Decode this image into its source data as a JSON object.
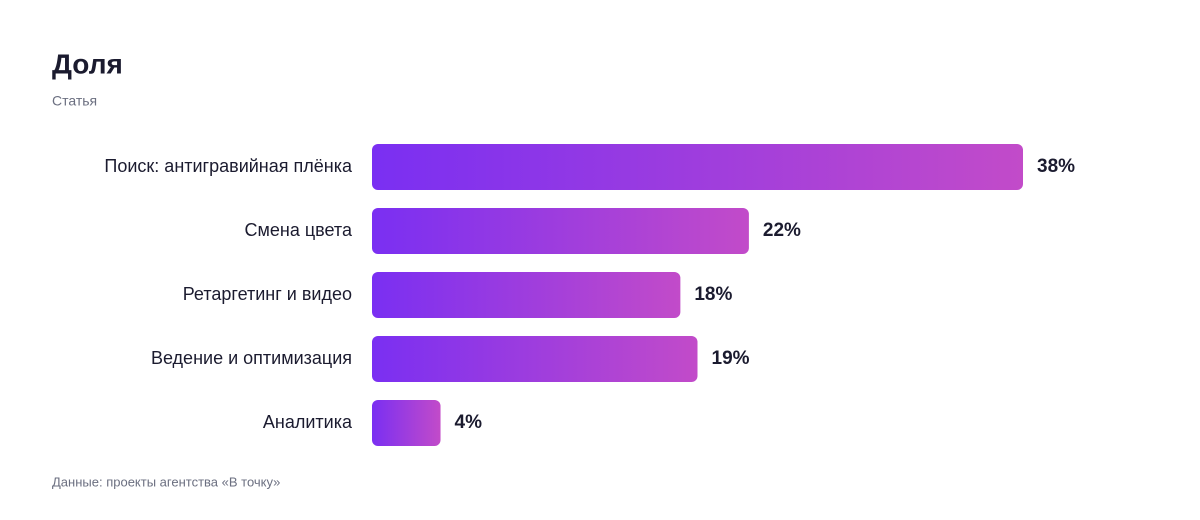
{
  "chart_data": {
    "type": "barh",
    "title": "Доля",
    "subtitle": "Статья",
    "categories": [
      "Поиск: антигравийная плёнка",
      "Смена цвета",
      "Ретаргетинг и видео",
      "Ведение и оптимизация",
      "Аналитика"
    ],
    "values": [
      38,
      22,
      18,
      19,
      4
    ],
    "value_labels": [
      "38%",
      "22%",
      "18%",
      "19%",
      "4%"
    ],
    "gradient": [
      "#7a2ff2",
      "#c24bc9"
    ],
    "note": "Данные: проекты агентства «В точку»"
  }
}
